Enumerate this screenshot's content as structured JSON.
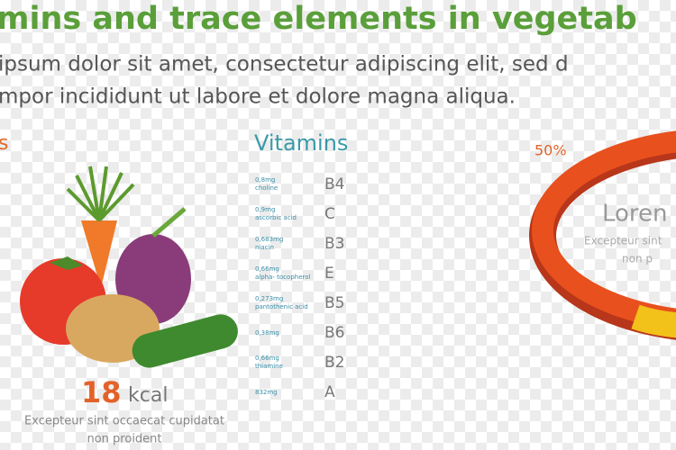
{
  "header": {
    "title": "mins and trace elements in vegetab",
    "subtitle_lines": [
      "ipsum dolor sit amet, consectetur adipiscing elit, sed d",
      "mpor incididunt ut labore et dolore magna aliqua."
    ]
  },
  "left_panel": {
    "heading": "s",
    "calories": "18",
    "unit": "kcal",
    "caption_lines": [
      "Excepteur sint occaecat cupidatat",
      "non proident"
    ]
  },
  "vitamins": {
    "heading": "Vitamins",
    "items": [
      {
        "amount": "0,8mg",
        "name": "choline",
        "letter": "B4"
      },
      {
        "amount": "0,9mg",
        "name": "ascorbic acid",
        "letter": "C"
      },
      {
        "amount": "0,683mg",
        "name": "niacin",
        "letter": "B3"
      },
      {
        "amount": "0,66mg",
        "name": "alpha- tocopherol",
        "letter": "E"
      },
      {
        "amount": "0,273mg",
        "name": "pantothenic acid",
        "letter": "B5"
      },
      {
        "amount": "0,38mg",
        "letter": "B6"
      },
      {
        "amount": "0,66mg",
        "name": "thiamine",
        "letter": "B2"
      },
      {
        "amount": "832mg",
        "letter": "A"
      }
    ]
  },
  "ring_panel": {
    "percent": "50%",
    "heading": "Loren",
    "caption_lines": [
      "Excepteur sint",
      "non p"
    ]
  }
}
